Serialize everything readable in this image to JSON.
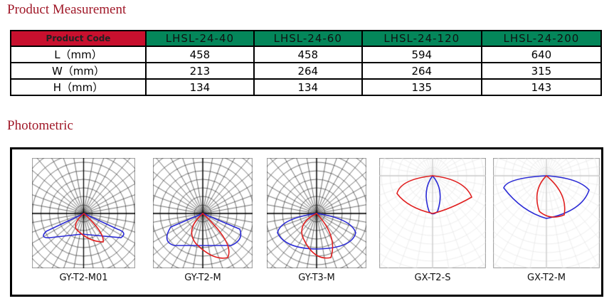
{
  "measurement": {
    "title": "Product Measurement",
    "header": [
      "Product Code",
      "LHSL-24-40",
      "LHSL-24-60",
      "LHSL-24-120",
      "LHSL-24-200"
    ],
    "rows": [
      [
        "L（mm）",
        "458",
        "458",
        "594",
        "640"
      ],
      [
        "W（mm）",
        "213",
        "264",
        "264",
        "315"
      ],
      [
        "H（mm）",
        "134",
        "134",
        "135",
        "143"
      ]
    ]
  },
  "photometric": {
    "title": "Photometric",
    "charts": [
      {
        "label": "GY-T2-M01"
      },
      {
        "label": "GY-T2-M"
      },
      {
        "label": "GY-T3-M"
      },
      {
        "label": "GX-T2-S"
      },
      {
        "label": "GX-T2-M"
      }
    ]
  },
  "colors": {
    "title": "#a01828",
    "code_bg": "#c8102e",
    "model_bg": "#04865a",
    "curve1": "#2b2bd6",
    "curve2": "#e02020"
  }
}
